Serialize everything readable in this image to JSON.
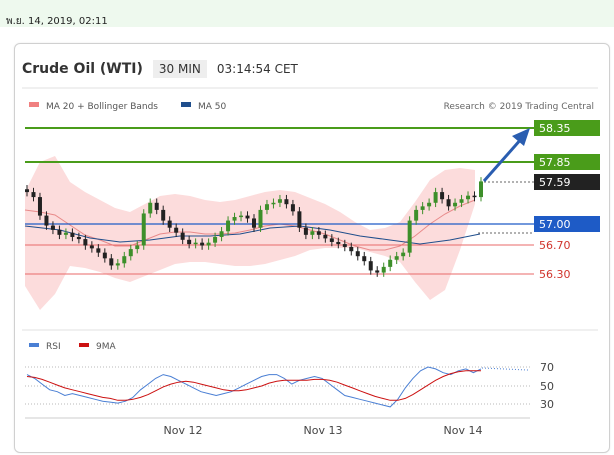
{
  "timestamp": "พ.ย. 14, 2019, 02:11",
  "header": {
    "symbol": "Crude Oil (WTI)",
    "timeframe": "30 MIN",
    "time": "03:14:54 CET"
  },
  "legend": {
    "bollinger": "MA 20 + Bollinger Bands",
    "ma50": "MA 50",
    "source": "Research © 2019 Trading Central"
  },
  "rsi_legend": {
    "rsi": "RSI",
    "ma": "9MA"
  },
  "colors": {
    "support": "#dd4444",
    "resistance": "#4a9c1a",
    "pivot": "#1e5bc6",
    "current": "#222222",
    "bollinger_fill": "#fcdcdc",
    "ma50": "#1f4e8c",
    "rsi": "#4a7fd4",
    "rsi_ma": "#cc1111",
    "arrow": "#2a5db0"
  },
  "chart_data": [
    {
      "type": "candlestick",
      "x_ticks": [
        "Nov 12",
        "Nov 13",
        "Nov 14"
      ],
      "ylim": [
        55.9,
        58.55
      ],
      "levels": [
        {
          "value": 58.35,
          "label": "58.35",
          "kind": "resistance"
        },
        {
          "value": 57.85,
          "label": "57.85",
          "kind": "resistance"
        },
        {
          "value": 57.59,
          "label": "57.59",
          "kind": "current"
        },
        {
          "value": 57.0,
          "label": "57.00",
          "kind": "pivot"
        },
        {
          "value": 56.7,
          "label": "56.70",
          "kind": "support"
        },
        {
          "value": 56.3,
          "label": "56.30",
          "kind": "support"
        }
      ],
      "close": [
        57.45,
        57.38,
        57.12,
        56.98,
        56.92,
        56.85,
        56.88,
        56.82,
        56.79,
        56.7,
        56.66,
        56.6,
        56.52,
        56.42,
        56.45,
        56.55,
        56.65,
        56.7,
        57.15,
        57.3,
        57.2,
        57.05,
        56.95,
        56.88,
        56.78,
        56.72,
        56.74,
        56.7,
        56.74,
        56.82,
        56.9,
        57.05,
        57.1,
        57.12,
        57.08,
        56.95,
        57.2,
        57.28,
        57.3,
        57.35,
        57.28,
        57.18,
        56.95,
        56.85,
        56.9,
        56.85,
        56.8,
        56.75,
        56.72,
        56.68,
        56.62,
        56.55,
        56.48,
        56.35,
        56.32,
        56.4,
        56.5,
        56.55,
        56.6,
        57.05,
        57.2,
        57.25,
        57.3,
        57.45,
        57.35,
        57.25,
        57.3,
        57.35,
        57.4,
        57.38,
        57.6
      ]
    },
    {
      "type": "line",
      "title": "RSI",
      "y_ticks": [
        70,
        50,
        30
      ],
      "series": [
        {
          "name": "RSI",
          "values": [
            62,
            58,
            52,
            46,
            44,
            40,
            42,
            40,
            38,
            36,
            34,
            33,
            32,
            34,
            38,
            46,
            52,
            58,
            62,
            60,
            56,
            52,
            48,
            44,
            42,
            40,
            42,
            44,
            48,
            52,
            56,
            60,
            62,
            62,
            58,
            52,
            56,
            58,
            60,
            58,
            52,
            46,
            40,
            38,
            36,
            34,
            32,
            30,
            28,
            36,
            48,
            58,
            66,
            70,
            68,
            64,
            62,
            66,
            68,
            64,
            68
          ]
        },
        {
          "name": "9MA",
          "values": [
            60,
            59,
            57,
            54,
            51,
            48,
            46,
            44,
            42,
            40,
            38,
            37,
            35,
            35,
            36,
            38,
            41,
            45,
            49,
            52,
            54,
            55,
            54,
            52,
            50,
            48,
            46,
            45,
            45,
            46,
            48,
            50,
            53,
            55,
            56,
            56,
            56,
            56,
            57,
            57,
            56,
            54,
            51,
            48,
            45,
            42,
            39,
            37,
            35,
            35,
            37,
            41,
            46,
            51,
            56,
            60,
            63,
            65,
            66,
            66,
            66
          ]
        }
      ]
    }
  ]
}
